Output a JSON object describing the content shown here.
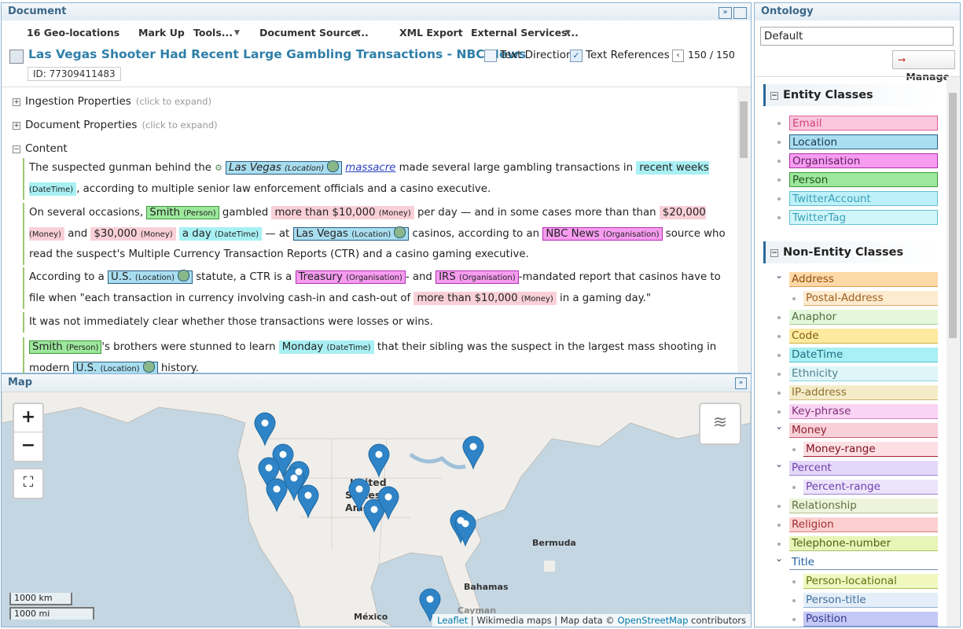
{
  "document": {
    "title": "Document",
    "toolbar": [
      "16 Geo-locations",
      "Mark Up",
      "Tools...",
      "Document Source...",
      "XML Export",
      "External Services..."
    ],
    "heading": "Las Vegas Shooter Had Recent Large Gambling Transactions - NBC News",
    "id": "ID: 77309411483",
    "text_direction": "Text Direction",
    "text_references": "Text References",
    "paging": "150 / 150",
    "sections": [
      {
        "label": "Ingestion Properties",
        "hint": "(click to expand)"
      },
      {
        "label": "Document Properties",
        "hint": "(click to expand)"
      },
      {
        "label": "Content"
      }
    ],
    "paragraphs": [
      [
        "The suspected gunman behind the ",
        {
          "text": "Las Vegas",
          "tag": "(Location)",
          "color": "#a9def0",
          "border": "#2a5f80",
          "geo": true,
          "italic": true
        },
        {
          "text": "massacre",
          "link": true
        },
        " made several large gambling transactions in ",
        {
          "text": "recent weeks",
          "tag": "(DateTime)",
          "color": "#a8f0f4",
          "border": "#a8f0f4"
        },
        ", according to multiple senior law enforcement officials and a casino executive."
      ],
      [
        "On several occasions, ",
        {
          "text": "Smith",
          "tag": "(Person)",
          "color": "#9de89d",
          "border": "#3a9a3a"
        },
        " gambled ",
        {
          "text": "more than $10,000",
          "tag": "(Money)",
          "color": "#f9d0d8",
          "border": "#f9d0d8"
        },
        " per day — and in some cases more than than ",
        {
          "text": "$20,000",
          "tag": "(Money)",
          "color": "#f9d0d8",
          "border": "#f9d0d8"
        },
        " and ",
        {
          "text": "$30,000",
          "tag": "(Money)",
          "color": "#f9d0d8",
          "border": "#f9d0d8"
        },
        " ",
        {
          "text": "a day",
          "tag": "(DateTime)",
          "color": "#a8f0f4",
          "border": "#a8f0f4"
        },
        " — at ",
        {
          "text": "Las Vegas",
          "tag": "(Location)",
          "color": "#a9def0",
          "border": "#2a5f80",
          "geo": true
        },
        " casinos, according to an ",
        {
          "text": "NBC News",
          "tag": "(Organisation)",
          "color": "#f79cf0",
          "border": "#b030b0"
        },
        " source who read the suspect's Multiple Currency Transaction Reports (CTR) and a casino gaming executive."
      ],
      [
        "According to a ",
        {
          "text": "U.S.",
          "tag": "(Location)",
          "color": "#a9def0",
          "border": "#2a5f80",
          "geo": true
        },
        " statute, a CTR is a ",
        {
          "text": "Treasury",
          "tag": "(Organisation)",
          "color": "#f79cf0",
          "border": "#b030b0"
        },
        "- and ",
        {
          "text": "IRS",
          "tag": "(Organisation)",
          "color": "#f79cf0",
          "border": "#b030b0"
        },
        "-mandated report that casinos have to file when \"each transaction in currency involving cash-in and cash-out of ",
        {
          "text": "more than $10,000",
          "tag": "(Money)",
          "color": "#f9d0d8",
          "border": "#f9d0d8"
        },
        " in a gaming day.\""
      ],
      [
        "It was not immediately clear whether those transactions were losses or wins."
      ],
      [
        {
          "text": "Smith",
          "tag": "(Person)",
          "color": "#9de89d",
          "border": "#3a9a3a"
        },
        "'s brothers were stunned to learn ",
        {
          "text": "Monday",
          "tag": "(DateTime)",
          "color": "#a8f0f4",
          "border": "#a8f0f4"
        },
        " that their sibling was the suspect in the largest mass shooting in modern ",
        {
          "text": "U.S.",
          "tag": "(Location)",
          "color": "#a9def0",
          "border": "#2a5f80",
          "geo": true
        },
        " history."
      ]
    ]
  },
  "map": {
    "title": "Map",
    "zoom_in": "+",
    "zoom_out": "−",
    "scale_km": "1000 km",
    "scale_mi": "1000 mi",
    "places": [
      "United",
      "States of",
      "America",
      "Bermuda",
      "Bahamas",
      "México",
      "Cayman"
    ],
    "attribution": [
      "Leaflet",
      " | Wikimedia maps | Map data © ",
      "OpenStreetMap",
      " contributors"
    ]
  },
  "ontology": {
    "title": "Ontology",
    "selected": "Default",
    "manage": "Manage",
    "entity_title": "Entity Classes",
    "entity_classes": [
      {
        "label": "Email",
        "color": "#fac6dc",
        "border": "#e0609a",
        "text": "#d0407a"
      },
      {
        "label": "Location",
        "color": "#a9def0",
        "border": "#2a5f80",
        "text": "#1a3a50"
      },
      {
        "label": "Organisation",
        "color": "#f79cf0",
        "border": "#b030b0",
        "text": "#602060"
      },
      {
        "label": "Person",
        "color": "#9de89d",
        "border": "#3a9a3a",
        "text": "#205020"
      },
      {
        "label": "TwitterAccount",
        "color": "#bdf0f8",
        "border": "#60c0d0",
        "text": "#3aa0b8"
      },
      {
        "label": "TwitterTag",
        "color": "#d0f6fa",
        "border": "#60c0d0",
        "text": "#3aa0b8"
      }
    ],
    "non_entity_title": "Non-Entity Classes",
    "non_entity_classes": [
      {
        "label": "Address",
        "color": "#fdd9a8",
        "border": "#e0a050",
        "text": "#905010",
        "children": [
          {
            "label": "Postal-Address",
            "color": "#fdebd0",
            "border": "#e0b070",
            "text": "#a06020"
          }
        ]
      },
      {
        "label": "Anaphor",
        "color": "#e4f7dc",
        "border": "#a0d090",
        "text": "#507040"
      },
      {
        "label": "Code",
        "color": "#fde9a0",
        "border": "#d0b040",
        "text": "#806010"
      },
      {
        "label": "DateTime",
        "color": "#a8f0f4",
        "border": "#50c0d0",
        "text": "#207080"
      },
      {
        "label": "Ethnicity",
        "color": "#dff6f8",
        "border": "#90d0e0",
        "text": "#508090"
      },
      {
        "label": "IP-address",
        "color": "#f4ecc8",
        "border": "#d0b870",
        "text": "#907030"
      },
      {
        "label": "Key-phrase",
        "color": "#f9d4f4",
        "border": "#d080c8",
        "text": "#803078"
      },
      {
        "label": "Money",
        "color": "#f9d0d8",
        "border": "#c06070",
        "text": "#902030",
        "children": [
          {
            "label": "Money-range",
            "color": "#fce0e4",
            "border": "#a02030",
            "text": "#801020"
          }
        ]
      },
      {
        "label": "Percent",
        "color": "#e4d8f8",
        "border": "#a080d0",
        "text": "#7040b0",
        "children": [
          {
            "label": "Percent-range",
            "color": "#ece4fa",
            "border": "#a080d0",
            "text": "#7040b0"
          }
        ]
      },
      {
        "label": "Relationship",
        "color": "#eef4dc",
        "border": "#b0c090",
        "text": "#607040"
      },
      {
        "label": "Religion",
        "color": "#fcd0d0",
        "border": "#e08080",
        "text": "#a03030"
      },
      {
        "label": "Telephone-number",
        "color": "#e8f4b8",
        "border": "#b0c060",
        "text": "#506010"
      },
      {
        "label": "Title",
        "color": "#ffffff",
        "border": "#7090b0",
        "text": "#2060a0",
        "children": [
          {
            "label": "Person-locational",
            "color": "#f0f8c0",
            "border": "#b0c060",
            "text": "#607010"
          },
          {
            "label": "Person-title",
            "color": "#e4eef8",
            "border": "#90b0d0",
            "text": "#4070a0"
          },
          {
            "label": "Position",
            "color": "#c4c8f4",
            "border": "#7080d0",
            "text": "#303a90"
          }
        ]
      }
    ]
  }
}
